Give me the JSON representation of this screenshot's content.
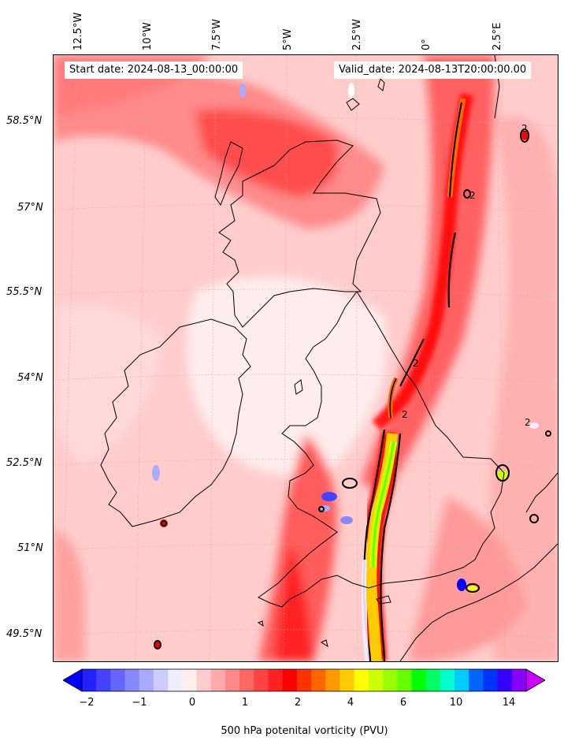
{
  "lon_labels": [
    "12.5°W",
    "10°W",
    "7.5°W",
    "5°W",
    "2.5°W",
    "0°",
    "2.5°E"
  ],
  "lat_labels": [
    "58.5°N",
    "57°N",
    "55.5°N",
    "54°N",
    "52.5°N",
    "51°N",
    "49.5°N"
  ],
  "start_date": "Start date: 2024-08-13_00:00:00",
  "valid_date": "Valid_date: 2024-08-13T20:00:00.00",
  "colorbar": {
    "ticks": [
      "−2",
      "−1",
      "0",
      "1",
      "2",
      "4",
      "6",
      "10",
      "14"
    ],
    "label": "500 hPa potenital vorticity (PVU)",
    "colors": [
      "#0000ff",
      "#2222ff",
      "#4444ff",
      "#6666ff",
      "#8888ff",
      "#aaaaff",
      "#ccccff",
      "#eeeeff",
      "#ffeeee",
      "#ffcccc",
      "#ffaaaa",
      "#ff8888",
      "#ff6666",
      "#ff4444",
      "#ff2222",
      "#ff0000",
      "#ff3300",
      "#ff6600",
      "#ff9900",
      "#ffcc00",
      "#ffff00",
      "#ccff00",
      "#99ff00",
      "#66ff00",
      "#00ff00",
      "#00ff66",
      "#00ffcc",
      "#00ccff",
      "#0066ff",
      "#0033ff",
      "#3300ff",
      "#8800ff",
      "#cc00ff"
    ]
  },
  "contour_level": "2"
}
